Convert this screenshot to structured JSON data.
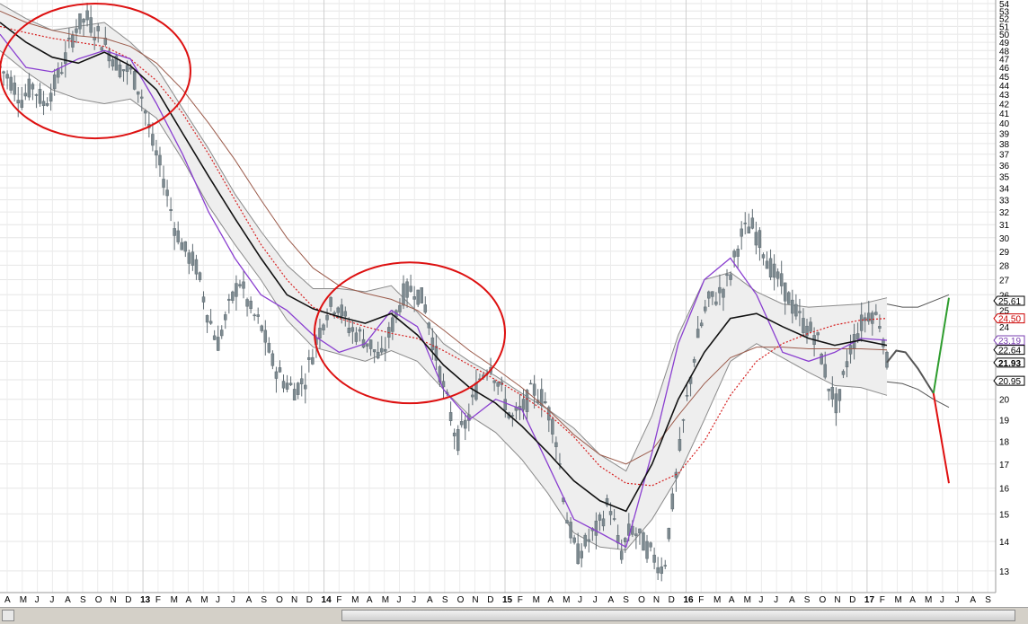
{
  "chart_data": {
    "type": "candlestick",
    "title": "",
    "ylim": [
      12.2,
      54
    ],
    "y_ticks": [
      13,
      14,
      15,
      16,
      17,
      18,
      19,
      20,
      21,
      22,
      23,
      24,
      25,
      26,
      27,
      28,
      29,
      30,
      31,
      32,
      33,
      34,
      35,
      36,
      37,
      38,
      39,
      40,
      41,
      42,
      43,
      44,
      45,
      46,
      47,
      48,
      49,
      50,
      51,
      52,
      53,
      54
    ],
    "x_months": [
      "A",
      "M",
      "J",
      "J",
      "A",
      "S",
      "O",
      "N",
      "D",
      "13",
      "F",
      "M",
      "A",
      "M",
      "J",
      "J",
      "A",
      "S",
      "O",
      "N",
      "D",
      "14",
      "F",
      "M",
      "A",
      "M",
      "J",
      "J",
      "A",
      "S",
      "O",
      "N",
      "D",
      "15",
      "F",
      "M",
      "A",
      "M",
      "J",
      "J",
      "A",
      "S",
      "O",
      "N",
      "D",
      "16",
      "F",
      "M",
      "A",
      "M",
      "J",
      "J",
      "A",
      "S",
      "O",
      "N",
      "D",
      "17",
      "F",
      "M",
      "A",
      "M",
      "J",
      "J",
      "A",
      "S"
    ],
    "year_marks": [
      "13",
      "14",
      "15",
      "16",
      "17"
    ],
    "price_labels": [
      {
        "text": "25.61",
        "value": 25.61,
        "color": "#000000",
        "bold": false
      },
      {
        "text": "24.50",
        "value": 24.5,
        "color": "#cc0000",
        "bold": false
      },
      {
        "text": "23.19",
        "value": 23.19,
        "color": "#7a3fb0",
        "bold": false
      },
      {
        "text": "22.64",
        "value": 22.64,
        "color": "#000000",
        "bold": false
      },
      {
        "text": "21.93",
        "value": 21.93,
        "color": "#000000",
        "bold": true
      },
      {
        "text": "20.95",
        "value": 20.95,
        "color": "#000000",
        "bold": false
      }
    ],
    "price_path": [
      [
        0,
        46
      ],
      [
        2,
        44.5
      ],
      [
        4,
        42.5
      ],
      [
        6,
        44
      ],
      [
        8,
        42
      ],
      [
        10,
        44
      ],
      [
        12,
        47
      ],
      [
        14,
        51
      ],
      [
        16,
        52
      ],
      [
        18,
        50
      ],
      [
        20,
        48
      ],
      [
        22,
        46
      ],
      [
        24,
        45.5
      ],
      [
        26,
        43
      ],
      [
        28,
        38
      ],
      [
        30,
        35
      ],
      [
        32,
        31
      ],
      [
        34,
        29
      ],
      [
        36,
        28
      ],
      [
        38,
        25
      ],
      [
        40,
        23
      ],
      [
        42,
        25
      ],
      [
        44,
        27
      ],
      [
        46,
        25
      ],
      [
        48,
        24
      ],
      [
        50,
        22
      ],
      [
        52,
        21
      ],
      [
        54,
        20.5
      ],
      [
        56,
        21
      ],
      [
        58,
        23
      ],
      [
        60,
        25
      ],
      [
        62,
        25.5
      ],
      [
        64,
        24
      ],
      [
        66,
        23.5
      ],
      [
        68,
        23
      ],
      [
        70,
        22
      ],
      [
        72,
        24
      ],
      [
        74,
        26
      ],
      [
        76,
        26.5
      ],
      [
        78,
        25.5
      ],
      [
        80,
        22.5
      ],
      [
        82,
        20
      ],
      [
        84,
        18
      ],
      [
        86,
        19
      ],
      [
        88,
        21
      ],
      [
        90,
        22
      ],
      [
        92,
        20.5
      ],
      [
        94,
        19
      ],
      [
        96,
        19.5
      ],
      [
        98,
        20.5
      ],
      [
        100,
        20
      ],
      [
        102,
        18.5
      ],
      [
        104,
        15
      ],
      [
        106,
        13.5
      ],
      [
        108,
        14
      ],
      [
        110,
        14.5
      ],
      [
        112,
        15.5
      ],
      [
        114,
        13.5
      ],
      [
        116,
        14.5
      ],
      [
        118,
        14
      ],
      [
        120,
        13.5
      ],
      [
        122,
        13
      ],
      [
        124,
        16
      ],
      [
        126,
        19.5
      ],
      [
        128,
        23
      ],
      [
        130,
        25.5
      ],
      [
        132,
        26
      ],
      [
        134,
        27
      ],
      [
        136,
        30
      ],
      [
        138,
        31
      ],
      [
        140,
        29.5
      ],
      [
        142,
        27.5
      ],
      [
        144,
        26.5
      ],
      [
        146,
        25
      ],
      [
        148,
        24
      ],
      [
        150,
        23.5
      ],
      [
        152,
        21
      ],
      [
        154,
        19.5
      ],
      [
        156,
        22.5
      ],
      [
        158,
        24
      ],
      [
        160,
        25
      ],
      [
        162,
        24.2
      ],
      [
        163,
        21.93
      ]
    ],
    "ma_black": [
      [
        0,
        51.5
      ],
      [
        10,
        49
      ],
      [
        20,
        47.2
      ],
      [
        30,
        46.5
      ],
      [
        40,
        47.8
      ],
      [
        50,
        46.2
      ],
      [
        60,
        43.5
      ],
      [
        70,
        39
      ],
      [
        80,
        35
      ],
      [
        90,
        31.5
      ],
      [
        100,
        28.5
      ],
      [
        110,
        26
      ],
      [
        120,
        25.1
      ],
      [
        130,
        24.6
      ],
      [
        140,
        24.2
      ],
      [
        150,
        24.8
      ],
      [
        160,
        23.5
      ],
      [
        170,
        21.8
      ],
      [
        180,
        20.6
      ],
      [
        190,
        19.8
      ],
      [
        200,
        18.7
      ],
      [
        210,
        17.5
      ],
      [
        220,
        16.3
      ],
      [
        230,
        15.5
      ],
      [
        240,
        15.1
      ],
      [
        250,
        17
      ],
      [
        260,
        20
      ],
      [
        270,
        22.5
      ],
      [
        280,
        24.5
      ],
      [
        290,
        24.8
      ],
      [
        300,
        24
      ],
      [
        310,
        23.3
      ],
      [
        320,
        22.9
      ],
      [
        330,
        23.2
      ],
      [
        340,
        22.9
      ]
    ],
    "band_upper": [
      [
        0,
        54
      ],
      [
        10,
        52
      ],
      [
        20,
        50.5
      ],
      [
        30,
        51
      ],
      [
        40,
        51.5
      ],
      [
        50,
        49
      ],
      [
        60,
        46
      ],
      [
        70,
        41.5
      ],
      [
        80,
        37.5
      ],
      [
        90,
        33.5
      ],
      [
        100,
        30.5
      ],
      [
        110,
        28
      ],
      [
        120,
        26.4
      ],
      [
        130,
        26.4
      ],
      [
        140,
        26.2
      ],
      [
        150,
        26.6
      ],
      [
        160,
        24.9
      ],
      [
        170,
        23
      ],
      [
        180,
        22
      ],
      [
        190,
        21.2
      ],
      [
        200,
        20.3
      ],
      [
        210,
        19.5
      ],
      [
        220,
        18.6
      ],
      [
        230,
        17.4
      ],
      [
        240,
        16.7
      ],
      [
        250,
        19.2
      ],
      [
        260,
        23.5
      ],
      [
        270,
        27
      ],
      [
        280,
        27.5
      ],
      [
        290,
        26.2
      ],
      [
        300,
        25.4
      ],
      [
        310,
        25.2
      ],
      [
        320,
        25.3
      ],
      [
        330,
        25.4
      ],
      [
        340,
        25.8
      ]
    ],
    "band_lower": [
      [
        0,
        48
      ],
      [
        10,
        45.5
      ],
      [
        20,
        43.5
      ],
      [
        30,
        42.5
      ],
      [
        40,
        42
      ],
      [
        50,
        42.5
      ],
      [
        60,
        40.5
      ],
      [
        70,
        36.5
      ],
      [
        80,
        32.5
      ],
      [
        90,
        29.5
      ],
      [
        100,
        27
      ],
      [
        110,
        24.4
      ],
      [
        120,
        22.8
      ],
      [
        130,
        22.4
      ],
      [
        140,
        22
      ],
      [
        150,
        22.6
      ],
      [
        160,
        22
      ],
      [
        170,
        20.5
      ],
      [
        180,
        19.2
      ],
      [
        190,
        18.4
      ],
      [
        200,
        17.2
      ],
      [
        210,
        15.8
      ],
      [
        220,
        14.3
      ],
      [
        230,
        13.8
      ],
      [
        240,
        13.7
      ],
      [
        250,
        14.8
      ],
      [
        260,
        16.5
      ],
      [
        270,
        19
      ],
      [
        280,
        22
      ],
      [
        290,
        23
      ],
      [
        300,
        22.2
      ],
      [
        310,
        21.4
      ],
      [
        320,
        20.7
      ],
      [
        330,
        20.6
      ],
      [
        340,
        20.2
      ]
    ],
    "ma_purple": [
      [
        0,
        50
      ],
      [
        10,
        46
      ],
      [
        20,
        45.5
      ],
      [
        30,
        47
      ],
      [
        40,
        48
      ],
      [
        50,
        47
      ],
      [
        60,
        42
      ],
      [
        70,
        37
      ],
      [
        80,
        32
      ],
      [
        90,
        28.5
      ],
      [
        100,
        26
      ],
      [
        110,
        25
      ],
      [
        120,
        23.5
      ],
      [
        130,
        22.5
      ],
      [
        140,
        23
      ],
      [
        150,
        25
      ],
      [
        160,
        24
      ],
      [
        170,
        20.5
      ],
      [
        180,
        19
      ],
      [
        190,
        20
      ],
      [
        200,
        19.5
      ],
      [
        210,
        17
      ],
      [
        220,
        14.8
      ],
      [
        230,
        14.3
      ],
      [
        240,
        13.8
      ],
      [
        250,
        17.5
      ],
      [
        260,
        23
      ],
      [
        270,
        27
      ],
      [
        280,
        28.5
      ],
      [
        290,
        26
      ],
      [
        300,
        22.5
      ],
      [
        310,
        22
      ],
      [
        320,
        22.5
      ],
      [
        330,
        23.3
      ],
      [
        340,
        23.19
      ]
    ],
    "ma_brown": [
      [
        0,
        53
      ],
      [
        10,
        51.5
      ],
      [
        20,
        50.5
      ],
      [
        30,
        49.8
      ],
      [
        40,
        49.5
      ],
      [
        50,
        48.5
      ],
      [
        60,
        46.5
      ],
      [
        70,
        43.5
      ],
      [
        80,
        40
      ],
      [
        90,
        36.5
      ],
      [
        100,
        33
      ],
      [
        110,
        30
      ],
      [
        120,
        27.8
      ],
      [
        130,
        26.6
      ],
      [
        140,
        26.1
      ],
      [
        150,
        25.7
      ],
      [
        160,
        25
      ],
      [
        170,
        23.8
      ],
      [
        180,
        22.6
      ],
      [
        190,
        21.6
      ],
      [
        200,
        20.6
      ],
      [
        210,
        19.5
      ],
      [
        220,
        18.3
      ],
      [
        230,
        17.4
      ],
      [
        240,
        17
      ],
      [
        250,
        17.6
      ],
      [
        260,
        19.2
      ],
      [
        270,
        20.8
      ],
      [
        280,
        22.2
      ],
      [
        290,
        22.8
      ],
      [
        300,
        22.8
      ],
      [
        310,
        22.7
      ],
      [
        320,
        22.7
      ],
      [
        330,
        22.7
      ],
      [
        340,
        22.64
      ]
    ],
    "ma_red_dotted": [
      [
        0,
        51
      ],
      [
        10,
        50.2
      ],
      [
        20,
        49.5
      ],
      [
        30,
        49
      ],
      [
        40,
        48.5
      ],
      [
        50,
        47
      ],
      [
        60,
        44.5
      ],
      [
        70,
        41
      ],
      [
        80,
        37
      ],
      [
        90,
        33
      ],
      [
        100,
        29.5
      ],
      [
        110,
        27
      ],
      [
        120,
        25.2
      ],
      [
        130,
        24.5
      ],
      [
        140,
        24
      ],
      [
        150,
        23.6
      ],
      [
        160,
        23.3
      ],
      [
        170,
        22.6
      ],
      [
        180,
        21.8
      ],
      [
        190,
        21
      ],
      [
        200,
        20.2
      ],
      [
        210,
        19.3
      ],
      [
        220,
        18.2
      ],
      [
        230,
        16.9
      ],
      [
        240,
        16.2
      ],
      [
        250,
        16.1
      ],
      [
        260,
        16.6
      ],
      [
        270,
        18
      ],
      [
        280,
        20.2
      ],
      [
        290,
        22
      ],
      [
        300,
        23
      ],
      [
        310,
        23.6
      ],
      [
        320,
        24.1
      ],
      [
        330,
        24.4
      ],
      [
        340,
        24.5
      ]
    ],
    "projection_upper": [
      [
        0,
        25.4
      ],
      [
        10,
        25.2
      ],
      [
        20,
        25.2
      ],
      [
        30,
        25.6
      ],
      [
        40,
        26
      ]
    ],
    "projection_lower": [
      [
        0,
        20.9
      ],
      [
        10,
        20.8
      ],
      [
        20,
        20.5
      ],
      [
        30,
        20
      ],
      [
        40,
        19.6
      ]
    ],
    "projection_gray": [
      [
        0,
        21.93
      ],
      [
        6,
        22.6
      ],
      [
        12,
        22.5
      ],
      [
        20,
        21.6
      ],
      [
        30,
        20.3
      ]
    ],
    "projection_green": [
      [
        30,
        20.3
      ],
      [
        40,
        25.8
      ]
    ],
    "projection_red": [
      [
        30,
        20.3
      ],
      [
        40,
        16.2
      ]
    ],
    "circled_regions": [
      {
        "x_from": "A",
        "x_to": "F",
        "y_from": 38.5,
        "y_to": 54
      },
      {
        "x_from": "F",
        "x_to": "N",
        "y_from": 19.8,
        "y_to": 28.2
      }
    ],
    "grid": true
  }
}
